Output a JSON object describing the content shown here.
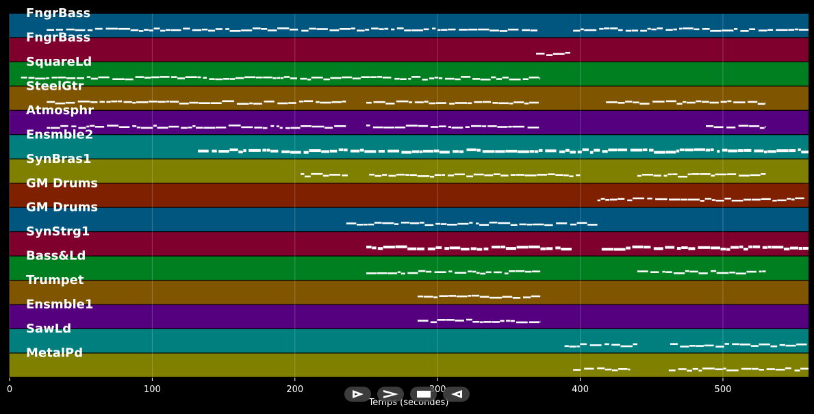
{
  "chart_data": {
    "type": "piano-roll",
    "xlabel": "Temps (secondes)",
    "xlim": [
      0,
      560
    ],
    "xticks": [
      0,
      100,
      200,
      300,
      400,
      500
    ],
    "grid": true,
    "tracks": [
      {
        "name": "FngrBass",
        "color": "#00567f",
        "segments": [
          [
            26,
            370
          ],
          [
            395,
            560
          ]
        ]
      },
      {
        "name": "FngrBass",
        "color": "#7f002c",
        "segments": [
          [
            369,
            393
          ]
        ]
      },
      {
        "name": "SquareLd",
        "color": "#007f20",
        "segments": [
          [
            8,
            372
          ]
        ]
      },
      {
        "name": "SteelGtr",
        "color": "#7f5500",
        "segments": [
          [
            26,
            236
          ],
          [
            250,
            372
          ],
          [
            418,
            530
          ]
        ]
      },
      {
        "name": "Atmosphr",
        "color": "#55007f",
        "segments": [
          [
            26,
            236
          ],
          [
            250,
            372
          ],
          [
            488,
            530
          ]
        ]
      },
      {
        "name": "Ensmble2",
        "color": "#007f7f",
        "segments": [
          [
            132,
            560
          ]
        ]
      },
      {
        "name": "SynBras1",
        "color": "#7f7f00",
        "segments": [
          [
            204,
            237
          ],
          [
            252,
            400
          ],
          [
            440,
            530
          ]
        ]
      },
      {
        "name": "GM Drums",
        "color": "#7f2000",
        "segments": [
          [
            412,
            557
          ]
        ]
      },
      {
        "name": "GM Drums",
        "color": "#00567f",
        "segments": [
          [
            236,
            412
          ]
        ]
      },
      {
        "name": "SynStrg1",
        "color": "#7f002c",
        "segments": [
          [
            250,
            394
          ],
          [
            415,
            560
          ]
        ]
      },
      {
        "name": "Bass&Ld",
        "color": "#007f20",
        "segments": [
          [
            250,
            372
          ],
          [
            440,
            530
          ]
        ]
      },
      {
        "name": "Trumpet",
        "color": "#7f5500",
        "segments": [
          [
            286,
            372
          ]
        ]
      },
      {
        "name": "Ensmble1",
        "color": "#55007f",
        "segments": [
          [
            286,
            372
          ]
        ]
      },
      {
        "name": "SawLd",
        "color": "#007f7f",
        "segments": [
          [
            389,
            440
          ],
          [
            463,
            560
          ]
        ]
      },
      {
        "name": "MetalPd",
        "color": "#7f7f00",
        "segments": [
          [
            395,
            435
          ],
          [
            462,
            560
          ]
        ]
      }
    ]
  },
  "controls": [
    {
      "name": "play-icon"
    },
    {
      "name": "forward-icon"
    },
    {
      "name": "stop-icon"
    },
    {
      "name": "back-icon"
    }
  ]
}
